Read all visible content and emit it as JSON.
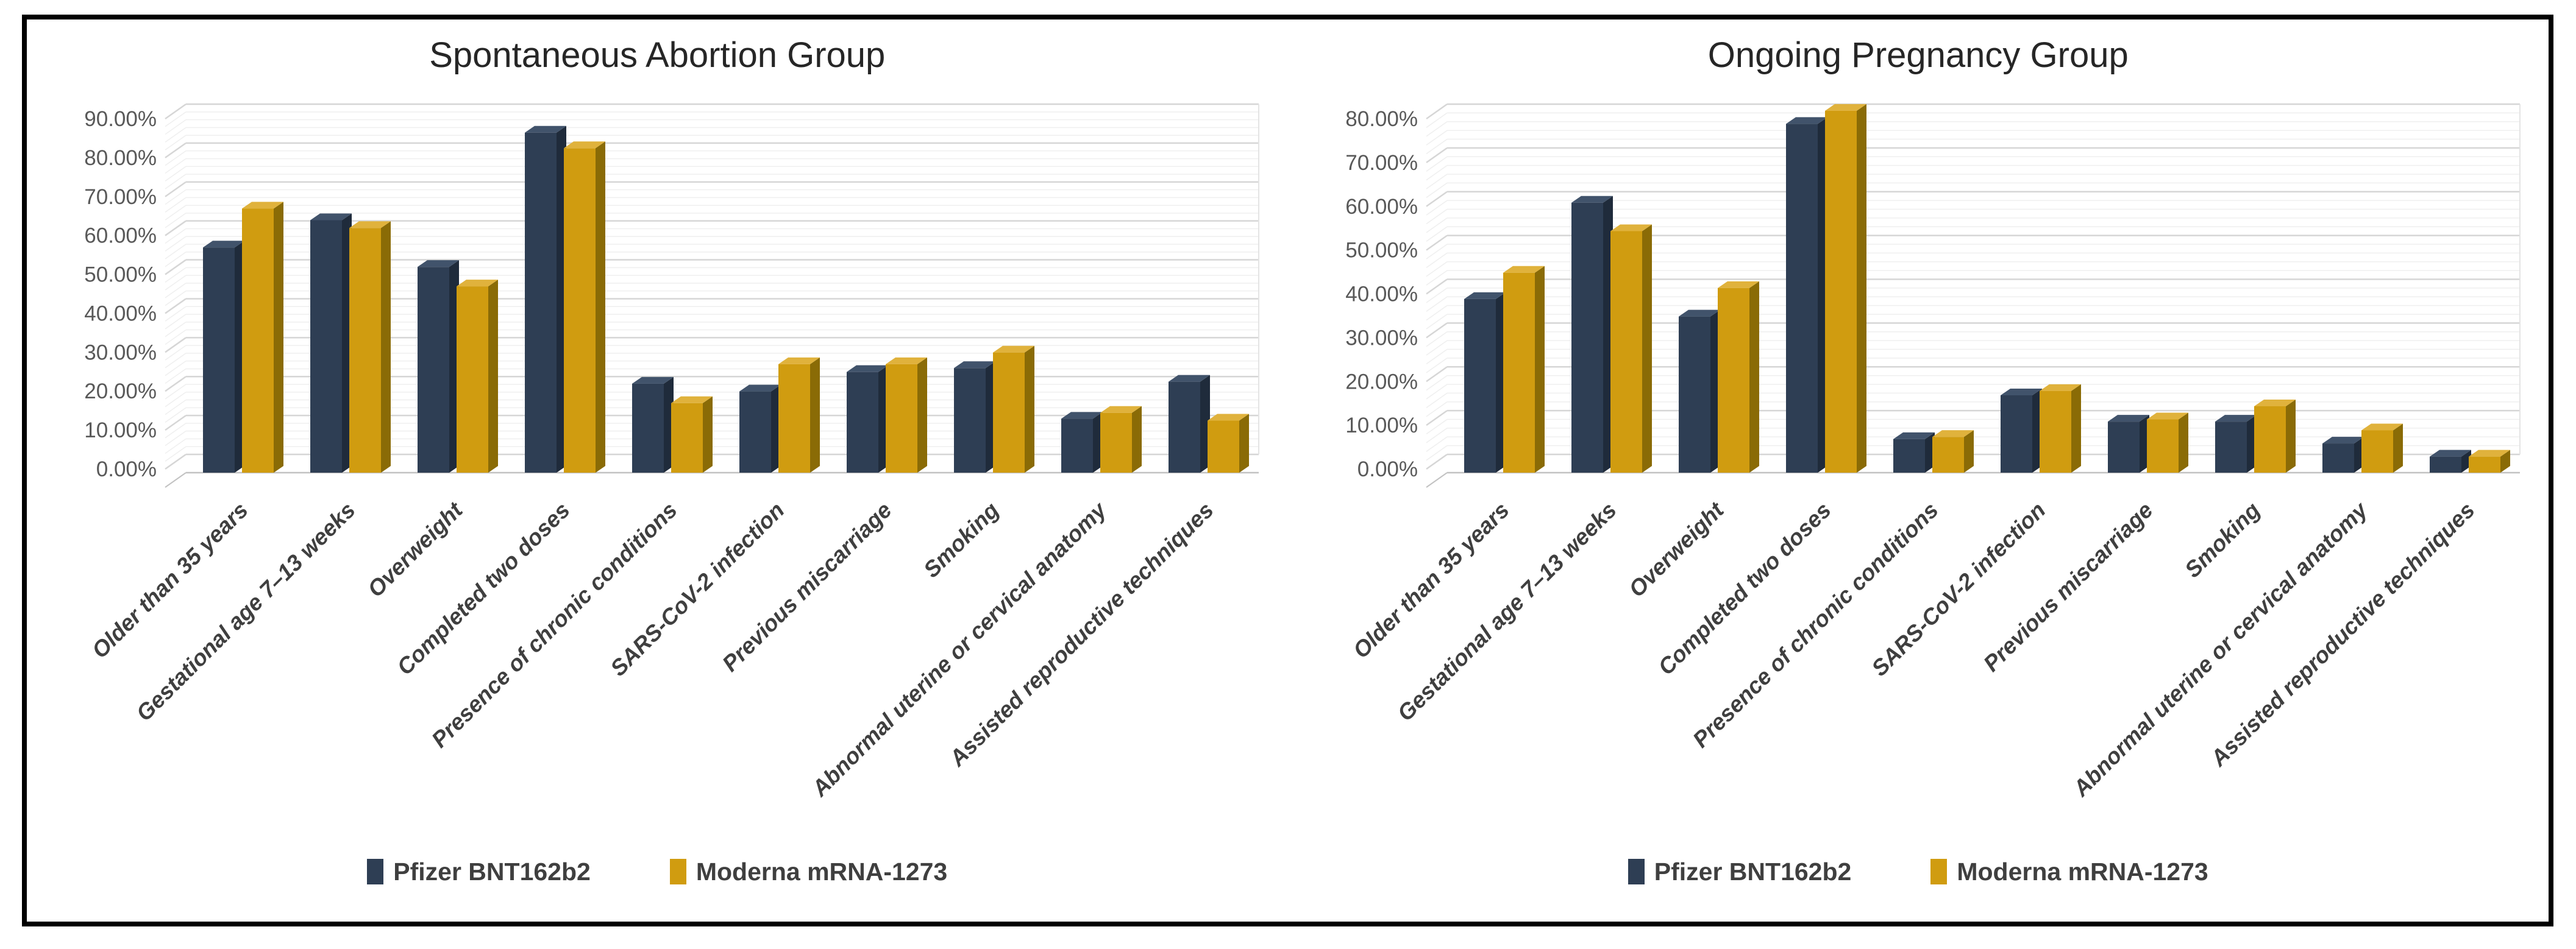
{
  "figure": {
    "background": "#ffffff",
    "border_color": "#000000"
  },
  "series": [
    {
      "name": "Pfizer BNT162b2",
      "color_front": "#2E3E54",
      "color_top": "#41536B",
      "color_side": "#1F2B3B"
    },
    {
      "name": "Moderna mRNA-1273",
      "color_front": "#D09C10",
      "color_top": "#E0B23C",
      "color_side": "#8A6B06"
    }
  ],
  "axis_style": {
    "tick_label_color": "#595959",
    "category_label_color": "#3F3F3F",
    "grid_major_color": "#D6D6D6",
    "grid_minor_color": "#EFEFEF",
    "axis_line_color": "#C2C2C2"
  },
  "chart_data": [
    {
      "type": "bar",
      "title": "Spontaneous Abortion Group",
      "categories": [
        "Older than 35 years",
        "Gestational age 7–13 weeks",
        "Overweight",
        "Completed two doses",
        "Presence of chronic conditions",
        "SARS-CoV-2 infection",
        "Previous miscarriage",
        "Smoking",
        "Abnormal uterine or cervical anatomy",
        "Assisted reproductive techniques"
      ],
      "series": [
        {
          "name": "Pfizer BNT162b2",
          "values": [
            56,
            63,
            51,
            85.5,
            21,
            19,
            24,
            25,
            12,
            21.5
          ]
        },
        {
          "name": "Moderna mRNA-1273",
          "values": [
            66,
            61,
            46,
            81.5,
            16,
            26,
            26,
            29,
            13.5,
            11.5
          ]
        }
      ],
      "xlabel": "",
      "ylabel": "",
      "ylim": [
        0,
        90
      ],
      "ytick_step": 10,
      "minor_step": 2,
      "yticks": [
        "0.00%",
        "10.00%",
        "20.00%",
        "30.00%",
        "40.00%",
        "50.00%",
        "60.00%",
        "70.00%",
        "80.00%",
        "90.00%"
      ],
      "grid": true,
      "style": "3d-clustered-column",
      "legend_position": "bottom"
    },
    {
      "type": "bar",
      "title": "Ongoing Pregnancy Group",
      "categories": [
        "Older than 35 years",
        "Gestational age 7–13 weeks",
        "Overweight",
        "Completed two doses",
        "Presence of chronic conditions",
        "SARS-CoV-2 infection",
        "Previous miscarriage",
        "Smoking",
        "Abnormal uterine or cervical anatomy",
        "Assisted reproductive techniques"
      ],
      "series": [
        {
          "name": "Pfizer BNT162b2",
          "values": [
            38,
            60,
            34,
            78,
            6,
            16,
            10,
            10,
            5,
            2
          ]
        },
        {
          "name": "Moderna mRNA-1273",
          "values": [
            44,
            53.5,
            40.5,
            81,
            6.5,
            17,
            10.5,
            13.5,
            8,
            2
          ]
        }
      ],
      "xlabel": "",
      "ylabel": "",
      "ylim": [
        0,
        80
      ],
      "ytick_step": 10,
      "minor_step": 2,
      "yticks": [
        "0.00%",
        "10.00%",
        "20.00%",
        "30.00%",
        "40.00%",
        "50.00%",
        "60.00%",
        "70.00%",
        "80.00%"
      ],
      "grid": true,
      "style": "3d-clustered-column",
      "legend_position": "bottom"
    }
  ]
}
